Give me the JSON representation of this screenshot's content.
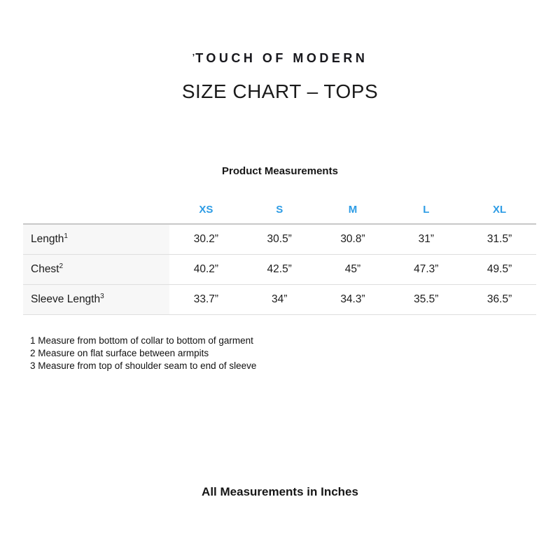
{
  "brand": {
    "mark": "’",
    "name": "TOUCH OF MODERN"
  },
  "title": "SIZE CHART – TOPS",
  "table": {
    "caption": "Product Measurements",
    "columns": [
      "XS",
      "S",
      "M",
      "L",
      "XL"
    ],
    "rows": [
      {
        "label": "Length",
        "sup": "1",
        "values": [
          "30.2”",
          "30.5”",
          "30.8”",
          "31”",
          "31.5”"
        ]
      },
      {
        "label": "Chest",
        "sup": "2",
        "values": [
          "40.2”",
          "42.5”",
          "45”",
          "47.3”",
          "49.5”"
        ]
      },
      {
        "label": "Sleeve Length",
        "sup": "3",
        "values": [
          "33.7”",
          "34”",
          "34.3”",
          "35.5”",
          "36.5”"
        ]
      }
    ]
  },
  "footnotes": [
    "1 Measure from bottom of collar to bottom of garment",
    "2 Measure on flat surface between armpits",
    "3 Measure from top of shoulder seam to end of sleeve"
  ],
  "footer": "All Measurements in Inches",
  "colors": {
    "size_header_blue": "#2D9CE5",
    "label_column_bg": "#f7f7f7",
    "table_top_border": "#c8c8c8",
    "table_row_border": "#dedede",
    "text": "#1b1b1b"
  }
}
